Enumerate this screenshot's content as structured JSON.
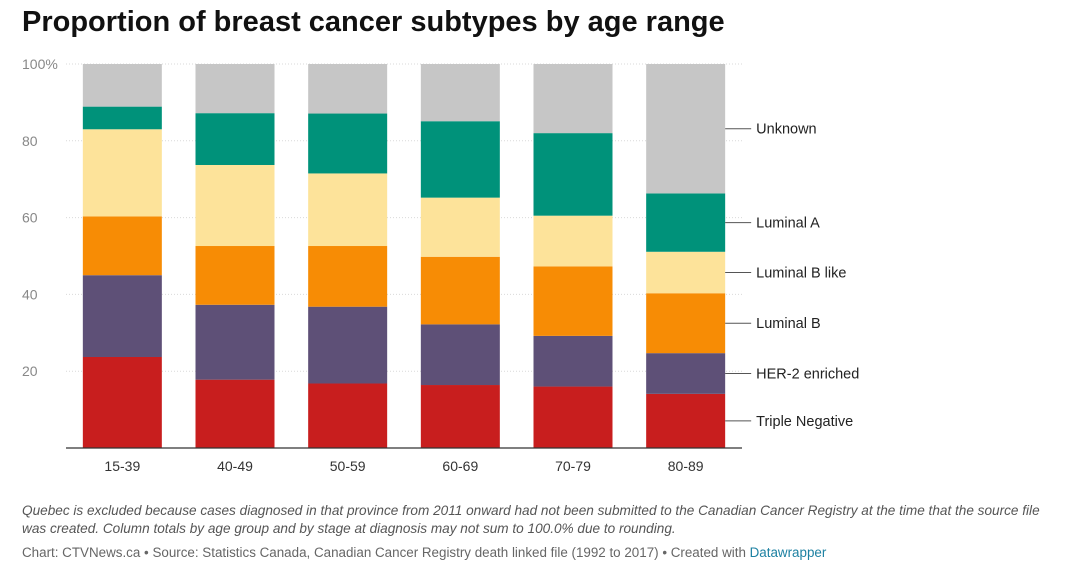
{
  "title": "Proportion of breast cancer subtypes by age range",
  "note": "Quebec is excluded because cases diagnosed in that province from 2011 onward had not been submitted to the Canadian Cancer Registry at the time that the source file was created. Column totals by age group and by stage at diagnosis may not sum to 100.0% due to rounding.",
  "credit": {
    "text": "Chart: CTVNews.ca • Source: Statistics Canada, Canadian Cancer Registry death linked file (1992 to 2017) • Created with",
    "link": "Datawrapper"
  },
  "chart_data": {
    "type": "bar",
    "stacked": true,
    "categories": [
      "15-39",
      "40-49",
      "50-59",
      "60-69",
      "70-79",
      "80-89"
    ],
    "ylim": [
      0,
      100
    ],
    "yticks": [
      20,
      40,
      60,
      80,
      100
    ],
    "ytick_labels": [
      "20",
      "40",
      "60",
      "80",
      "100%"
    ],
    "grid": true,
    "legend_placement": "right, aligned with last column",
    "series": [
      {
        "name": "Triple Negative",
        "color": "#c81e1e",
        "values": [
          23.7,
          17.8,
          16.8,
          16.4,
          16.0,
          14.1
        ]
      },
      {
        "name": "HER-2 enriched",
        "color": "#5e5077",
        "values": [
          21.3,
          19.5,
          20.0,
          15.8,
          13.2,
          10.6
        ]
      },
      {
        "name": "Luminal B",
        "color": "#f78c05",
        "values": [
          15.3,
          15.3,
          15.8,
          17.6,
          18.1,
          15.6
        ]
      },
      {
        "name": "Luminal B like",
        "color": "#fde39a",
        "values": [
          22.7,
          21.1,
          18.9,
          15.4,
          13.2,
          10.8
        ]
      },
      {
        "name": "Luminal A",
        "color": "#00927a",
        "values": [
          5.9,
          13.5,
          15.6,
          19.9,
          21.5,
          15.2
        ]
      },
      {
        "name": "Unknown",
        "color": "#c6c6c6",
        "values": [
          11.1,
          12.8,
          12.9,
          14.9,
          18.0,
          33.7
        ]
      }
    ]
  }
}
